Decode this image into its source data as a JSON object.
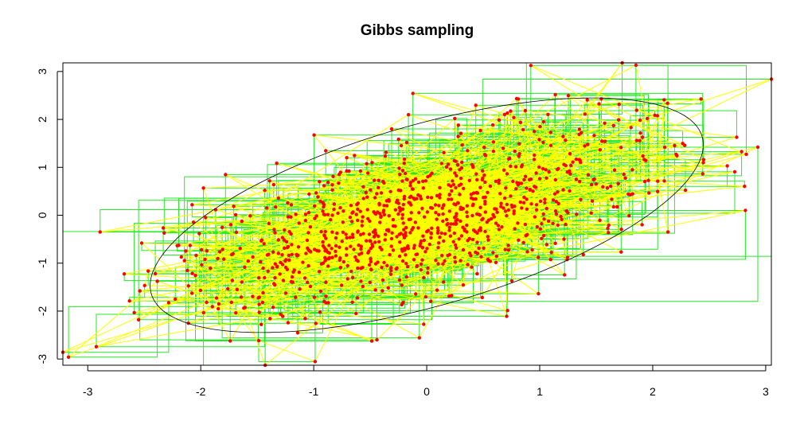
{
  "chart_data": {
    "type": "scatter",
    "title": "Gibbs sampling",
    "xlabel": "",
    "ylabel": "",
    "xlim": [
      -3.22,
      3.05
    ],
    "ylim": [
      -3.13,
      3.18
    ],
    "x_ticks": [
      -3,
      -2,
      -1,
      0,
      1,
      2,
      3
    ],
    "y_ticks": [
      -3,
      -2,
      -1,
      0,
      1,
      2,
      3
    ],
    "x_tick_labels": [
      "-3",
      "-2",
      "-1",
      "0",
      "1",
      "2",
      "3"
    ],
    "y_tick_labels": [
      "-3",
      "-2",
      "-1",
      "0",
      "1",
      "2",
      "3"
    ],
    "grid": false,
    "legend": "none",
    "colors": {
      "points": "#ff0000",
      "gibbs_steps": "#00e600",
      "chain_path": "#ffff00",
      "contour": "#000000",
      "frame": "#000000"
    },
    "series": [
      {
        "kind": "gibbs-chain",
        "correlation": 0.6,
        "sample_count": 1000,
        "seed": 7,
        "points_x": [
          -3.22,
          -2.89,
          3.05,
          1.73,
          -1.43,
          -2.55,
          2.82,
          2.93
        ],
        "points_y": [
          -2.86,
          -0.35,
          2.84,
          3.18,
          -3.13,
          -2.18,
          0.1,
          1.42
        ]
      },
      {
        "kind": "contour-ellipse",
        "correlation": 0.6,
        "level": "95%"
      }
    ]
  }
}
